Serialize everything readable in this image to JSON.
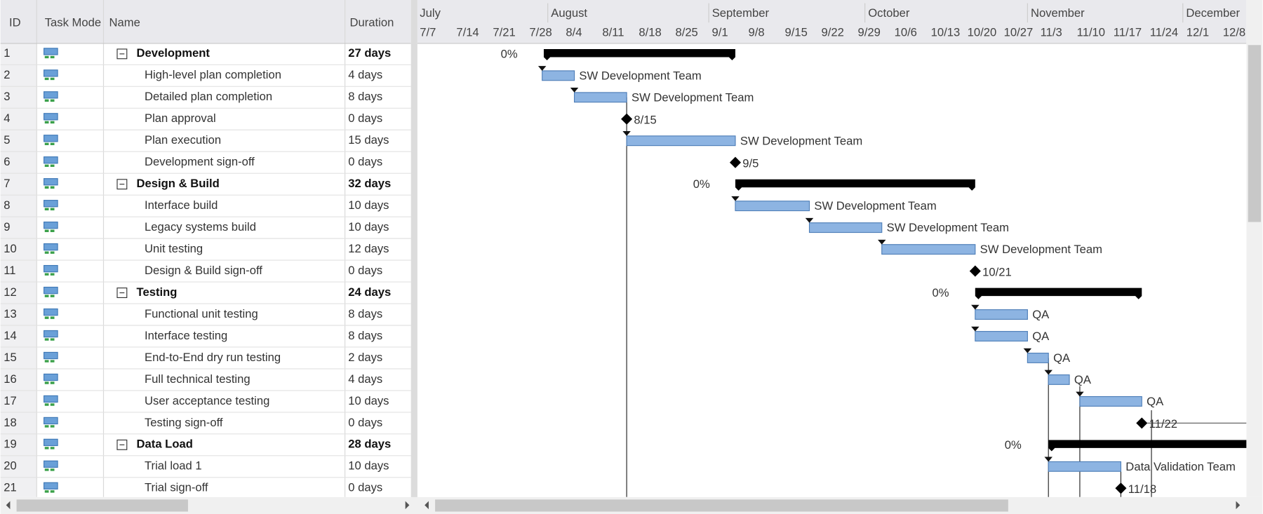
{
  "table": {
    "headers": [
      "ID",
      "Task Mode",
      "Name",
      "Duration"
    ],
    "rows": [
      {
        "id": "1",
        "name": "Development",
        "duration": "27 days",
        "summary": true,
        "bar_label": "0%"
      },
      {
        "id": "2",
        "name": "High-level plan completion",
        "duration": "4 days",
        "summary": false,
        "bar_label": "SW Development Team"
      },
      {
        "id": "3",
        "name": "Detailed plan completion",
        "duration": "8 days",
        "summary": false,
        "bar_label": "SW Development Team"
      },
      {
        "id": "4",
        "name": "Plan approval",
        "duration": "0 days",
        "summary": false,
        "bar_label": "8/15"
      },
      {
        "id": "5",
        "name": "Plan execution",
        "duration": "15 days",
        "summary": false,
        "bar_label": "SW Development Team"
      },
      {
        "id": "6",
        "name": "Development sign-off",
        "duration": "0 days",
        "summary": false,
        "bar_label": "9/5"
      },
      {
        "id": "7",
        "name": "Design & Build",
        "duration": "32 days",
        "summary": true,
        "bar_label": "0%"
      },
      {
        "id": "8",
        "name": "Interface build",
        "duration": "10 days",
        "summary": false,
        "bar_label": "SW Development Team"
      },
      {
        "id": "9",
        "name": "Legacy systems build",
        "duration": "10 days",
        "summary": false,
        "bar_label": "SW Development Team"
      },
      {
        "id": "10",
        "name": "Unit testing",
        "duration": "12 days",
        "summary": false,
        "bar_label": "SW Development Team"
      },
      {
        "id": "11",
        "name": "Design & Build sign-off",
        "duration": "0 days",
        "summary": false,
        "bar_label": "10/21"
      },
      {
        "id": "12",
        "name": "Testing",
        "duration": "24 days",
        "summary": true,
        "bar_label": "0%"
      },
      {
        "id": "13",
        "name": "Functional unit testing",
        "duration": "8 days",
        "summary": false,
        "bar_label": "QA"
      },
      {
        "id": "14",
        "name": "Interface testing",
        "duration": "8 days",
        "summary": false,
        "bar_label": "QA"
      },
      {
        "id": "15",
        "name": "End-to-End dry run testing",
        "duration": "2 days",
        "summary": false,
        "bar_label": "QA"
      },
      {
        "id": "16",
        "name": "Full technical testing",
        "duration": "4 days",
        "summary": false,
        "bar_label": "QA"
      },
      {
        "id": "17",
        "name": "User acceptance testing",
        "duration": "10 days",
        "summary": false,
        "bar_label": "QA"
      },
      {
        "id": "18",
        "name": "Testing sign-off",
        "duration": "0 days",
        "summary": false,
        "bar_label": "11/22"
      },
      {
        "id": "19",
        "name": "Data Load",
        "duration": "28 days",
        "summary": true,
        "bar_label": "0%"
      },
      {
        "id": "20",
        "name": "Trial load 1",
        "duration": "10 days",
        "summary": false,
        "bar_label": "Data Validation Team"
      },
      {
        "id": "21",
        "name": "Trial sign-off",
        "duration": "0 days",
        "summary": false,
        "bar_label": "11/18"
      }
    ]
  },
  "timeline": {
    "months": [
      "July",
      "August",
      "September",
      "October",
      "November",
      "December"
    ],
    "weeks": [
      "7/7",
      "7/14",
      "7/21",
      "7/28",
      "8/4",
      "8/11",
      "8/18",
      "8/25",
      "9/1",
      "9/8",
      "9/15",
      "9/22",
      "9/29",
      "10/6",
      "10/13",
      "10/20",
      "10/27",
      "11/3",
      "11/10",
      "11/17",
      "11/24",
      "12/1",
      "12/8"
    ]
  }
}
